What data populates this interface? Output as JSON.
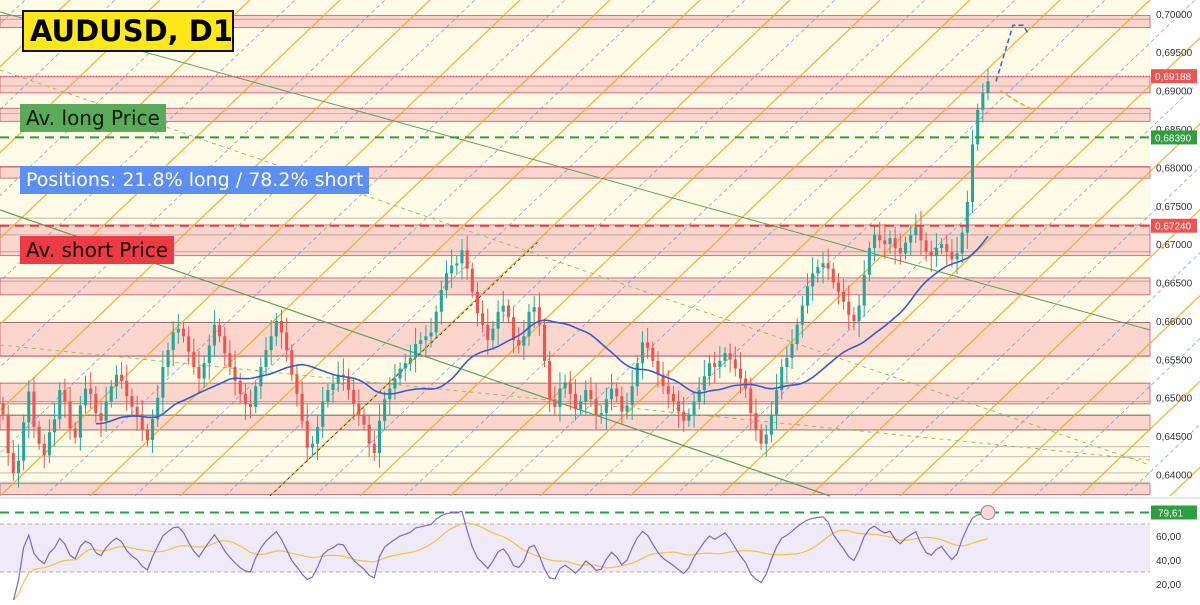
{
  "header": {
    "title": "AUDUSD, D1"
  },
  "annotations": {
    "long_label": "Av. long Price",
    "positions_label": "Positions: 21.8% long / 78.2% short",
    "short_label": "Av. short Price"
  },
  "colors": {
    "bull": "#26a69a",
    "bear": "#ef5350",
    "ma": "#3a5bd0",
    "channel": "#f5a623",
    "zone": "#f9b7b7",
    "long_level": "#2e9e3e",
    "short_level": "#e53945",
    "rsi": "#7b68c8"
  },
  "chart_data": [
    {
      "type": "candlestick",
      "title": "AUDUSD, D1",
      "ylim": [
        0.6372,
        0.7018
      ],
      "y_ticks": [
        "0,70000",
        "0,69500",
        "0,69000",
        "0,68500",
        "0,68000",
        "0,67500",
        "0,67000",
        "0,66500",
        "0,66000",
        "0,65500",
        "0,65000",
        "0,64500",
        "0,64000"
      ],
      "y_tick_values": [
        0.7,
        0.695,
        0.69,
        0.685,
        0.68,
        0.675,
        0.67,
        0.665,
        0.66,
        0.655,
        0.65,
        0.645,
        0.64
      ],
      "price_labels": [
        {
          "text": "0,69188",
          "value": 0.69188,
          "color": "#ef5350"
        },
        {
          "text": "0,68390",
          "value": 0.6839,
          "color": "#2e9e3e"
        },
        {
          "text": "0,67240",
          "value": 0.6724,
          "color": "#ef5350"
        }
      ],
      "levels": {
        "av_long_price": 0.6839,
        "av_short_price": 0.6724
      },
      "zones": [
        [
          0.6982,
          0.6998
        ],
        [
          0.6897,
          0.6918
        ],
        [
          0.686,
          0.6877
        ],
        [
          0.6786,
          0.6801
        ],
        [
          0.6685,
          0.6725
        ],
        [
          0.6634,
          0.6656
        ],
        [
          0.6554,
          0.6598
        ],
        [
          0.6492,
          0.6519
        ],
        [
          0.6458,
          0.6477
        ],
        [
          0.6374,
          0.6388
        ]
      ],
      "series": [
        {
          "name": "close",
          "values": [
            0.6478,
            0.6428,
            0.6402,
            0.6418,
            0.6468,
            0.6508,
            0.6462,
            0.644,
            0.6425,
            0.6455,
            0.6472,
            0.651,
            0.6495,
            0.646,
            0.6448,
            0.649,
            0.6512,
            0.6505,
            0.648,
            0.647,
            0.6495,
            0.6515,
            0.653,
            0.6522,
            0.6502,
            0.6488,
            0.6478,
            0.6458,
            0.6445,
            0.6472,
            0.65,
            0.654,
            0.6562,
            0.6585,
            0.659,
            0.658,
            0.656,
            0.654,
            0.6525,
            0.6545,
            0.6568,
            0.6595,
            0.658,
            0.6558,
            0.654,
            0.6522,
            0.6505,
            0.6492,
            0.6488,
            0.6515,
            0.654,
            0.6562,
            0.658,
            0.66,
            0.6585,
            0.6562,
            0.653,
            0.6505,
            0.647,
            0.6435,
            0.644,
            0.6462,
            0.6495,
            0.651,
            0.6518,
            0.653,
            0.6528,
            0.651,
            0.6492,
            0.6478,
            0.6465,
            0.644,
            0.6428,
            0.647,
            0.6498,
            0.6512,
            0.6525,
            0.6538,
            0.6545,
            0.6552,
            0.657,
            0.6575,
            0.658,
            0.6585,
            0.6612,
            0.664,
            0.6662,
            0.6672,
            0.6675,
            0.6692,
            0.6668,
            0.6638,
            0.661,
            0.6595,
            0.6575,
            0.659,
            0.6612,
            0.662,
            0.6605,
            0.6575,
            0.6568,
            0.658,
            0.6612,
            0.6618,
            0.6595,
            0.6548,
            0.6498,
            0.6488,
            0.6512,
            0.652,
            0.6505,
            0.6485,
            0.6495,
            0.651,
            0.6498,
            0.6478,
            0.648,
            0.6498,
            0.6512,
            0.6502,
            0.6482,
            0.649,
            0.6515,
            0.6545,
            0.6572,
            0.6565,
            0.6548,
            0.653,
            0.6515,
            0.6505,
            0.6495,
            0.6482,
            0.647,
            0.6478,
            0.6495,
            0.651,
            0.6528,
            0.6545,
            0.654,
            0.6548,
            0.6558,
            0.655,
            0.6538,
            0.6525,
            0.6512,
            0.648,
            0.6458,
            0.644,
            0.6452,
            0.6478,
            0.651,
            0.654,
            0.6552,
            0.657,
            0.6595,
            0.662,
            0.6645,
            0.6662,
            0.667,
            0.6675,
            0.6668,
            0.665,
            0.6638,
            0.6625,
            0.6608,
            0.66,
            0.662,
            0.666,
            0.6695,
            0.6712,
            0.6705,
            0.67,
            0.6708,
            0.6695,
            0.6688,
            0.6702,
            0.6712,
            0.6722,
            0.6705,
            0.669,
            0.6685,
            0.6695,
            0.67,
            0.669,
            0.668,
            0.6688,
            0.6715,
            0.6755,
            0.683,
            0.6875,
            0.6897,
            0.6912
          ]
        }
      ]
    },
    {
      "type": "line",
      "ylim": [
        15,
        90
      ],
      "y_ticks": [
        "60,00",
        "40,00",
        "20,00"
      ],
      "y_tick_values": [
        60,
        40,
        20
      ],
      "last_label": "79,61",
      "last_value": 79.61
    }
  ]
}
